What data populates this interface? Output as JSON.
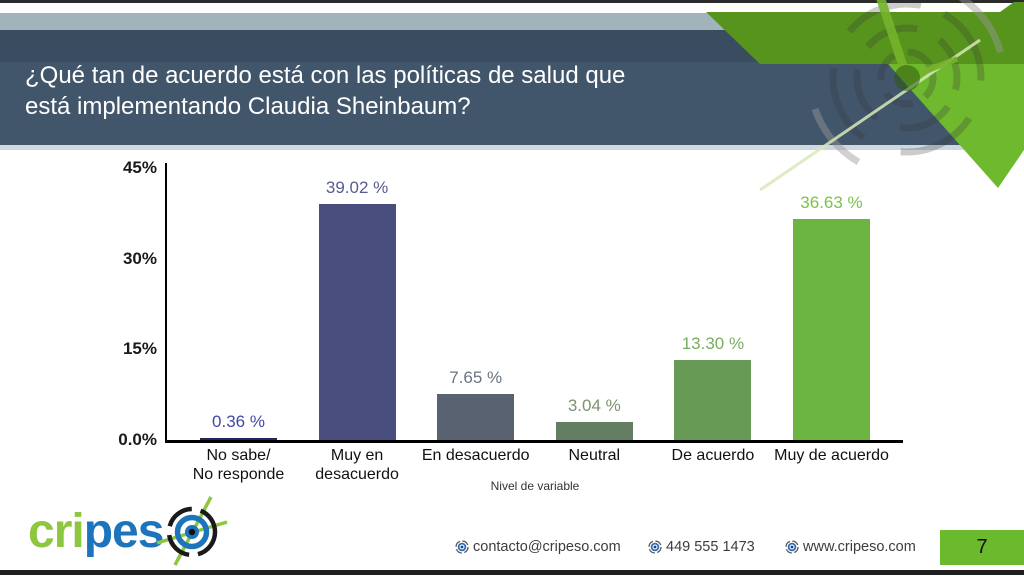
{
  "header": {
    "title_line1": "¿Qué tan de acuerdo está con las políticas de salud que",
    "title_line2": "está implementando Claudia Sheinbaum?"
  },
  "chart_data": {
    "type": "bar",
    "title": "",
    "xlabel": "Nivel de variable",
    "ylabel": "",
    "ylim": [
      0,
      45
    ],
    "grid": false,
    "legend": false,
    "yticks": [
      {
        "label": "45%",
        "value": 45
      },
      {
        "label": "30%",
        "value": 30
      },
      {
        "label": "15%",
        "value": 15
      },
      {
        "label": "0.0%",
        "value": 0
      }
    ],
    "categories": [
      "No sabe/\nNo responde",
      "Muy en\ndesacuerdo",
      "En desacuerdo",
      "Neutral",
      "De acuerdo",
      "Muy de acuerdo"
    ],
    "values": [
      0.36,
      39.02,
      7.65,
      3.04,
      13.3,
      36.63
    ],
    "value_labels": [
      "0.36 %",
      "39.02 %",
      "7.65 %",
      "3.04 %",
      "13.30 %",
      "36.63 %"
    ],
    "bar_colors": [
      "#23275f",
      "#4a4e7e",
      "#596270",
      "#637e62",
      "#679a55",
      "#6db543"
    ],
    "value_label_colors": [
      "#4447a5",
      "#575b92",
      "#6a7482",
      "#7b9371",
      "#78ad62",
      "#7cc24a"
    ]
  },
  "logo": {
    "text_part1": "cri",
    "text_part2": "pes",
    "icon": "dartboard-icon"
  },
  "footer": {
    "email": "contacto@cripeso.com",
    "phone": "449 555 1473",
    "website": "www.cripeso.com"
  },
  "page_number": "7",
  "colors": {
    "header_dark": "#3a4d60",
    "header_band": "#42566b",
    "strip_gray": "#a2b4bb",
    "accent_green_dark": "#57941d",
    "accent_green_bright": "#6fb92f",
    "page_box_green": "#6bb92c",
    "logo_green": "#8dc63f",
    "logo_blue": "#1c75bc"
  }
}
